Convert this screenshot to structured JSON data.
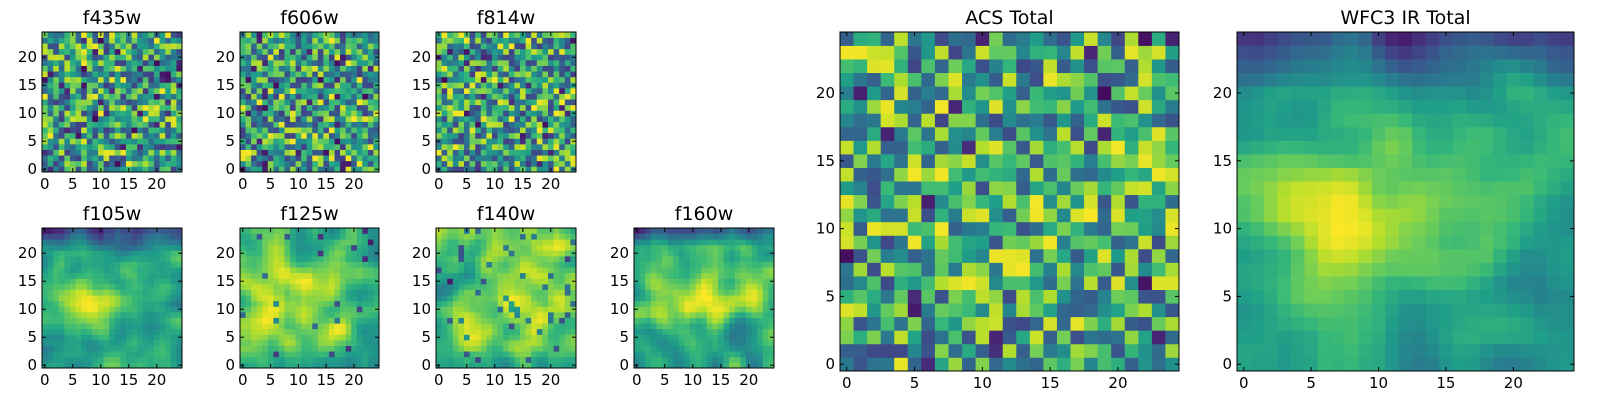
{
  "chart_data": [
    {
      "type": "heatmap",
      "title": "f435w",
      "colormap": "viridis",
      "shape": [
        25,
        25
      ],
      "xlim": [
        -0.5,
        24.5
      ],
      "ylim": [
        -0.5,
        24.5
      ],
      "xticks": [
        0,
        5,
        10,
        15,
        20
      ],
      "yticks": [
        0,
        5,
        10,
        15,
        20
      ],
      "xtick_labels": [
        "0",
        "5",
        "10",
        "15",
        "20"
      ],
      "ytick_labels": [
        "0",
        "5",
        "10",
        "15",
        "20"
      ],
      "value_range": [
        0,
        1
      ],
      "pattern": "pixel-scale noise",
      "seed": 11
    },
    {
      "type": "heatmap",
      "title": "f606w",
      "colormap": "viridis",
      "shape": [
        25,
        25
      ],
      "xlim": [
        -0.5,
        24.5
      ],
      "ylim": [
        -0.5,
        24.5
      ],
      "xticks": [
        0,
        5,
        10,
        15,
        20
      ],
      "yticks": [
        0,
        5,
        10,
        15,
        20
      ],
      "xtick_labels": [
        "0",
        "5",
        "10",
        "15",
        "20"
      ],
      "ytick_labels": [
        "0",
        "5",
        "10",
        "15",
        "20"
      ],
      "value_range": [
        0,
        1
      ],
      "pattern": "pixel-scale noise",
      "seed": 23
    },
    {
      "type": "heatmap",
      "title": "f814w",
      "colormap": "viridis",
      "shape": [
        25,
        25
      ],
      "xlim": [
        -0.5,
        24.5
      ],
      "ylim": [
        -0.5,
        24.5
      ],
      "xticks": [
        0,
        5,
        10,
        15,
        20
      ],
      "yticks": [
        0,
        5,
        10,
        15,
        20
      ],
      "xtick_labels": [
        "0",
        "5",
        "10",
        "15",
        "20"
      ],
      "ytick_labels": [
        "0",
        "5",
        "10",
        "15",
        "20"
      ],
      "value_range": [
        0,
        1
      ],
      "pattern": "pixel-scale noise",
      "seed": 37
    },
    {
      "type": "heatmap",
      "title": "f105w",
      "colormap": "viridis",
      "shape": [
        25,
        25
      ],
      "xlim": [
        -0.5,
        24.5
      ],
      "ylim": [
        -0.5,
        24.5
      ],
      "xticks": [
        0,
        5,
        10,
        15,
        20
      ],
      "yticks": [
        0,
        5,
        10,
        15,
        20
      ],
      "xtick_labels": [
        "0",
        "5",
        "10",
        "15",
        "20"
      ],
      "ytick_labels": [
        "0",
        "5",
        "10",
        "15",
        "20"
      ],
      "value_range": [
        0,
        1
      ],
      "pattern": "smooth, bright blob near (8, 11), dark top edge",
      "seed": 41
    },
    {
      "type": "heatmap",
      "title": "f125w",
      "colormap": "viridis",
      "shape": [
        25,
        25
      ],
      "xlim": [
        -0.5,
        24.5
      ],
      "ylim": [
        -0.5,
        24.5
      ],
      "xticks": [
        0,
        5,
        10,
        15,
        20
      ],
      "yticks": [
        0,
        5,
        10,
        15,
        20
      ],
      "xtick_labels": [
        "0",
        "5",
        "10",
        "15",
        "20"
      ],
      "ytick_labels": [
        "0",
        "5",
        "10",
        "15",
        "20"
      ],
      "value_range": [
        0,
        1
      ],
      "pattern": "smooth with dark spots",
      "seed": 53
    },
    {
      "type": "heatmap",
      "title": "f140w",
      "colormap": "viridis",
      "shape": [
        25,
        25
      ],
      "xlim": [
        -0.5,
        24.5
      ],
      "ylim": [
        -0.5,
        24.5
      ],
      "xticks": [
        0,
        5,
        10,
        15,
        20
      ],
      "yticks": [
        0,
        5,
        10,
        15,
        20
      ],
      "xtick_labels": [
        "0",
        "5",
        "10",
        "15",
        "20"
      ],
      "ytick_labels": [
        "0",
        "5",
        "10",
        "15",
        "20"
      ],
      "value_range": [
        0,
        1
      ],
      "pattern": "smooth with dark spots",
      "seed": 67
    },
    {
      "type": "heatmap",
      "title": "f160w",
      "colormap": "viridis",
      "shape": [
        25,
        25
      ],
      "xlim": [
        -0.5,
        24.5
      ],
      "ylim": [
        -0.5,
        24.5
      ],
      "xticks": [
        0,
        5,
        10,
        15,
        20
      ],
      "yticks": [
        0,
        5,
        10,
        15,
        20
      ],
      "xtick_labels": [
        "0",
        "5",
        "10",
        "15",
        "20"
      ],
      "ytick_labels": [
        "0",
        "5",
        "10",
        "15",
        "20"
      ],
      "value_range": [
        0,
        1
      ],
      "pattern": "smooth, bright band near y=12, dark top edge",
      "seed": 79
    },
    {
      "type": "heatmap",
      "title": "ACS Total",
      "colormap": "viridis",
      "shape": [
        25,
        25
      ],
      "xlim": [
        -0.5,
        24.5
      ],
      "ylim": [
        -0.5,
        24.5
      ],
      "xticks": [
        0,
        5,
        10,
        15,
        20
      ],
      "yticks": [
        0,
        5,
        10,
        15,
        20
      ],
      "xtick_labels": [
        "0",
        "5",
        "10",
        "15",
        "20"
      ],
      "ytick_labels": [
        "0",
        "5",
        "10",
        "15",
        "20"
      ],
      "value_range": [
        0,
        1
      ],
      "pattern": "pixel-scale noise, mostly green",
      "seed": 97
    },
    {
      "type": "heatmap",
      "title": "WFC3 IR Total",
      "colormap": "viridis",
      "shape": [
        25,
        25
      ],
      "xlim": [
        -0.5,
        24.5
      ],
      "ylim": [
        -0.5,
        24.5
      ],
      "xticks": [
        0,
        5,
        10,
        15,
        20
      ],
      "yticks": [
        0,
        5,
        10,
        15,
        20
      ],
      "xtick_labels": [
        "0",
        "5",
        "10",
        "15",
        "20"
      ],
      "ytick_labels": [
        "0",
        "5",
        "10",
        "15",
        "20"
      ],
      "value_range": [
        0,
        1
      ],
      "pattern": "smooth, bright region near (10, 11), dark top edge",
      "seed": 101
    }
  ]
}
